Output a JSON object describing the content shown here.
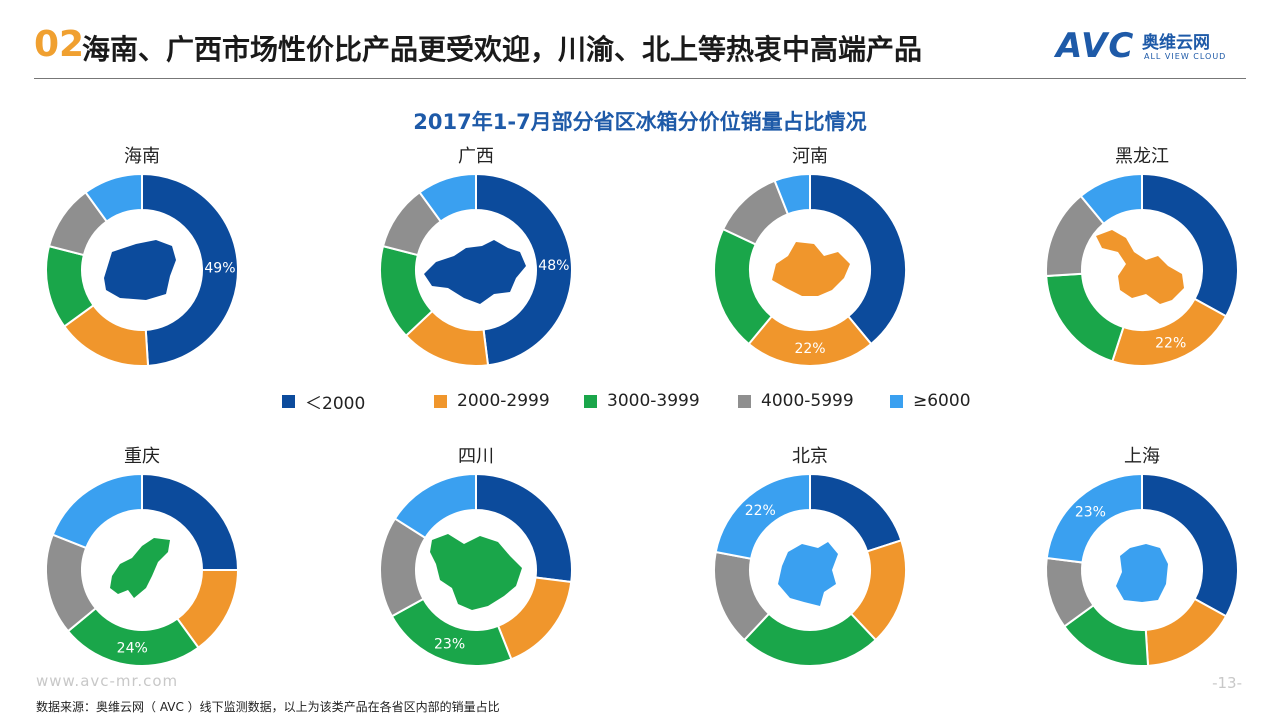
{
  "header": {
    "number": "02",
    "title": "海南、广西市场性价比产品更受欢迎，川渝、北上等热衷中高端产品",
    "logo_text": "AVC",
    "logo_cn": "奥维云网",
    "logo_en": "ALL VIEW CLOUD"
  },
  "colors": {
    "price_lt2000": "#0c4b9c",
    "price_2000_2999": "#f0962c",
    "price_3000_3999": "#1aa64a",
    "price_4000_5999": "#8f8f8f",
    "price_ge6000": "#3aa0f0",
    "map_hainan": "#0c4b9c",
    "map_guangxi": "#0c4b9c",
    "map_henan": "#f0962c",
    "map_heilongjiang": "#f0962c",
    "map_chongqing": "#1aa64a",
    "map_sichuan": "#1aa64a",
    "map_beijing": "#3aa0f0",
    "map_shanghai": "#3aa0f0"
  },
  "chart_data": {
    "type": "donut",
    "title": "2017年1-7月部分省区冰箱分价位销量占比情况",
    "categories": [
      "＜2000",
      "2000-2999",
      "3000-3999",
      "4000-5999",
      "≥6000"
    ],
    "legend_placement": "middle",
    "charts": [
      {
        "region": "海南",
        "values": [
          49,
          16,
          14,
          11,
          10
        ],
        "labels": [
          "49%",
          "",
          "",
          "",
          ""
        ]
      },
      {
        "region": "广西",
        "values": [
          48,
          15,
          16,
          11,
          10
        ],
        "labels": [
          "48%",
          "",
          "",
          "",
          ""
        ]
      },
      {
        "region": "河南",
        "values": [
          39,
          22,
          21,
          12,
          6
        ],
        "labels": [
          "",
          "22%",
          "",
          "",
          ""
        ]
      },
      {
        "region": "黑龙江",
        "values": [
          33,
          22,
          19,
          15,
          11
        ],
        "labels": [
          "",
          "22%",
          "",
          "",
          ""
        ]
      },
      {
        "region": "重庆",
        "values": [
          25,
          15,
          24,
          17,
          19
        ],
        "labels": [
          "",
          "",
          "24%",
          "",
          ""
        ]
      },
      {
        "region": "四川",
        "values": [
          27,
          17,
          23,
          17,
          16
        ],
        "labels": [
          "",
          "",
          "23%",
          "",
          ""
        ]
      },
      {
        "region": "北京",
        "values": [
          20,
          18,
          24,
          16,
          22
        ],
        "labels": [
          "",
          "",
          "",
          "",
          "22%"
        ]
      },
      {
        "region": "上海",
        "values": [
          33,
          16,
          16,
          12,
          23
        ],
        "labels": [
          "",
          "",
          "",
          "",
          "23%"
        ]
      }
    ]
  },
  "footer": {
    "url": "www.avc-mr.com",
    "page": "-13-",
    "source": "数据来源：奥维云网（  AVC  ）线下监测数据，以上为该类产品在各省区内部的销量占比"
  }
}
